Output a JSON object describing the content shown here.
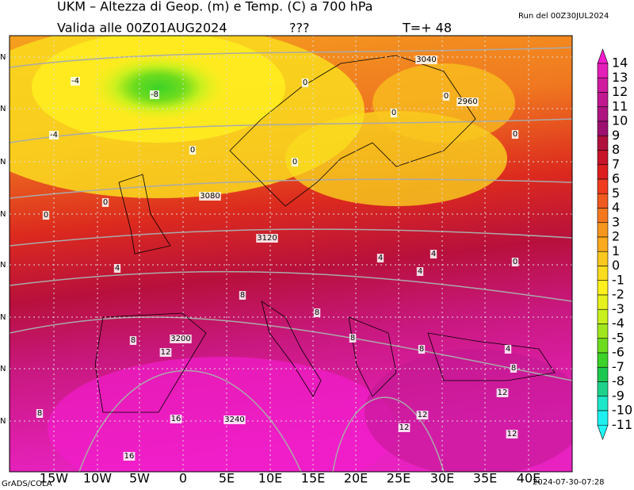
{
  "header": {
    "title": "UKM – Altezza di Geop. (m) e Temp. (C) a 700 hPa",
    "run": "Run del 00Z30JUL2024",
    "valid": "Valida alle 00Z01AUG2024",
    "flag": "???",
    "lead": "T=+ 48"
  },
  "colorbar": {
    "labels": [
      14,
      13,
      12,
      11,
      10,
      9,
      8,
      7,
      6,
      5,
      4,
      3,
      2,
      1,
      0,
      -1,
      -2,
      -3,
      -4,
      -5,
      -6,
      -7,
      -8,
      -9,
      -10,
      -11
    ],
    "colors": [
      "#f21ccc",
      "#e41eb8",
      "#d01aa0",
      "#c01890",
      "#ae1480",
      "#9e1070",
      "#b0103c",
      "#c81428",
      "#dc1e1e",
      "#f03c1e",
      "#f05a1e",
      "#f5781e",
      "#f5961e",
      "#faaa1e",
      "#fac81e",
      "#fadc1e",
      "#fff01e",
      "#e6f01e",
      "#c8f01e",
      "#a0e61e",
      "#6edc1e",
      "#3cd228",
      "#1ec850",
      "#1ed28c",
      "#1ee6c8",
      "#1ef0f0",
      "#20f8f8"
    ]
  },
  "map": {
    "x_labels": [
      "15W",
      "10W",
      "5W",
      "0",
      "5E",
      "10E",
      "15E",
      "20E",
      "25E",
      "30E",
      "35E",
      "40E"
    ],
    "y_labels": [
      "N",
      "N",
      "N",
      "N",
      "N",
      "N",
      "N",
      "N"
    ],
    "contour_labels": [
      "-4",
      "-8",
      "-4",
      "0",
      "3040",
      "2960",
      "0",
      "0",
      "0",
      "0",
      "0",
      "0",
      "3080",
      "0",
      "3120",
      "4",
      "4",
      "4",
      "4",
      "0",
      "8",
      "8",
      "8",
      "8",
      "3200",
      "12",
      "4",
      "8",
      "8",
      "12",
      "12",
      "8",
      "16",
      "3240",
      "12",
      "12",
      "16"
    ]
  },
  "footer": {
    "left": "GrADS/COLA",
    "right": "2024-07-30-07:28"
  }
}
